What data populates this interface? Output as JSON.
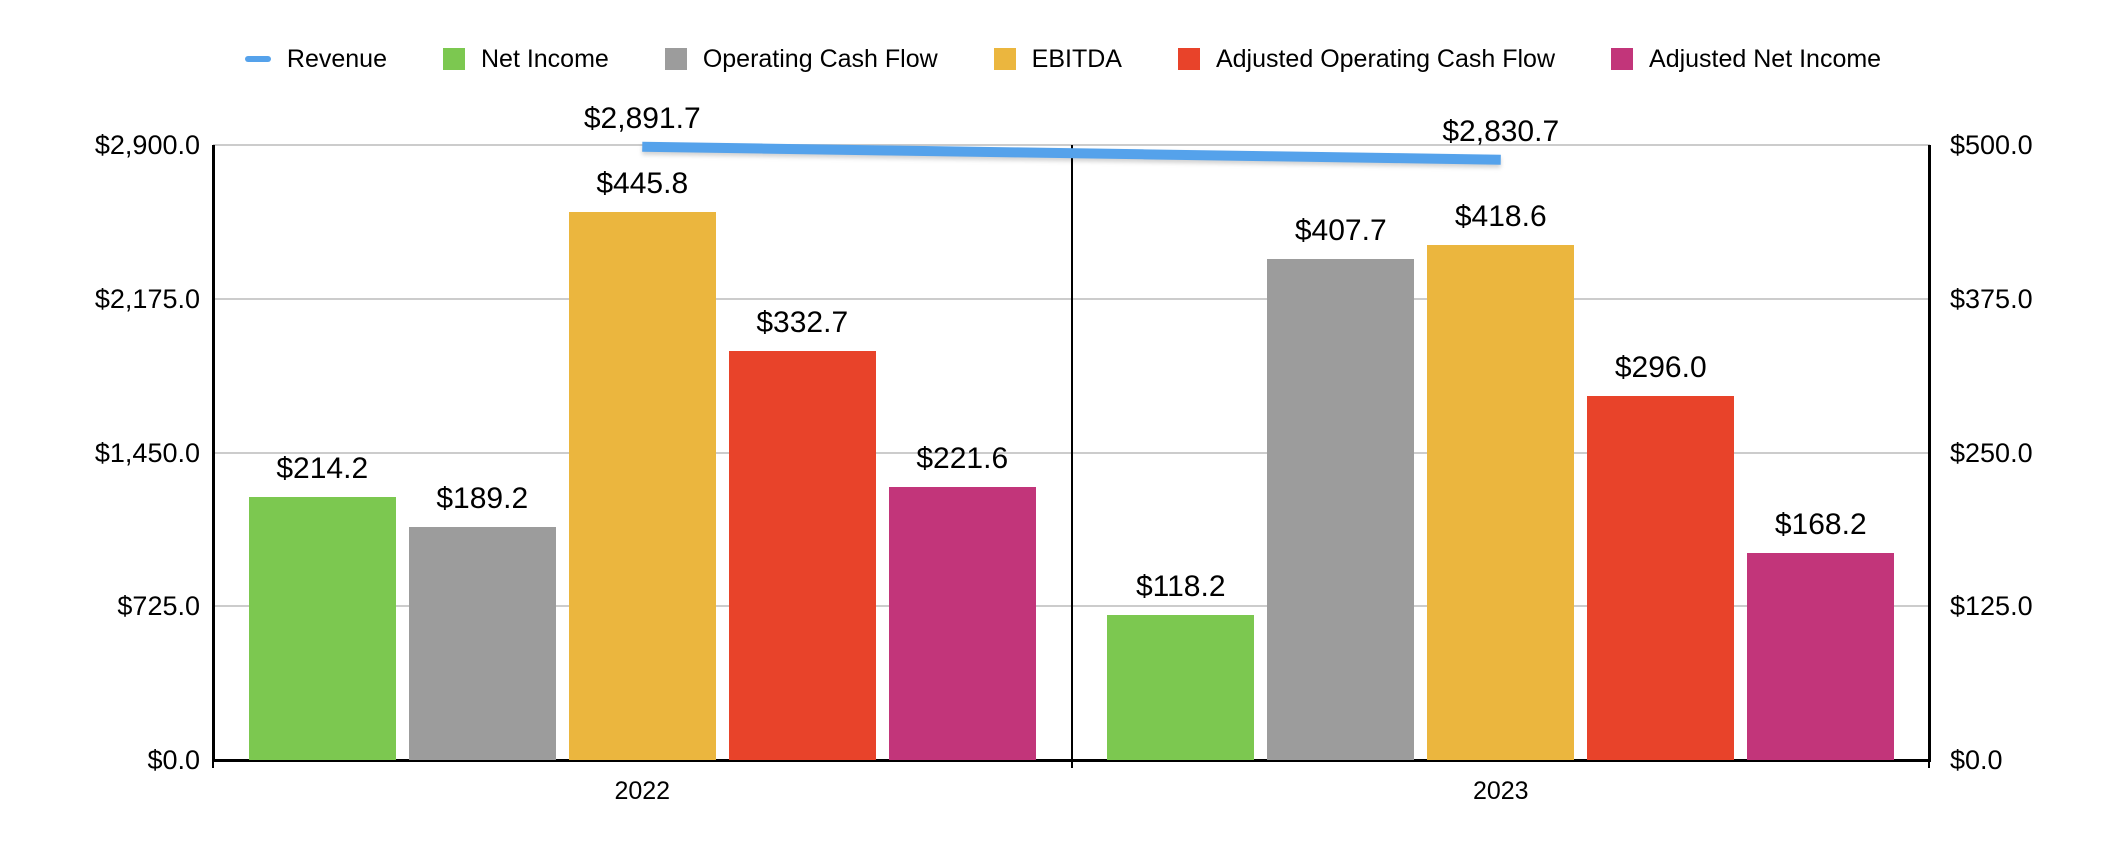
{
  "colors": {
    "revenue_blue": "#55A2EB",
    "net_income_green": "#7CC850",
    "operating_cash_flow_gray": "#9C9C9C",
    "ebitda_gold": "#EBB63E",
    "adjusted_ocf_red": "#E8432A",
    "adjusted_net_income_magenta": "#C2357A",
    "gridline_gray": "#cccccc",
    "axis_black": "#000000"
  },
  "legend": {
    "items": [
      {
        "label": "Revenue",
        "color": "#55A2EB",
        "swatch": "line"
      },
      {
        "label": "Net Income",
        "color": "#7CC850",
        "swatch": "square"
      },
      {
        "label": "Operating Cash Flow",
        "color": "#9C9C9C",
        "swatch": "square"
      },
      {
        "label": "EBITDA",
        "color": "#EBB63E",
        "swatch": "square"
      },
      {
        "label": "Adjusted Operating Cash Flow",
        "color": "#E8432A",
        "swatch": "square"
      },
      {
        "label": "Adjusted Net Income",
        "color": "#C2357A",
        "swatch": "square"
      }
    ]
  },
  "chart_data": {
    "type": "bar",
    "subtype": "grouped bars with overlaid line series on secondary axis",
    "title": "",
    "categories": [
      "2022",
      "2023"
    ],
    "bar_series": [
      {
        "name": "Net Income",
        "color": "#7CC850",
        "values": [
          214.2,
          118.2
        ],
        "labels": [
          "$214.2",
          "$118.2"
        ]
      },
      {
        "name": "Operating Cash Flow",
        "color": "#9C9C9C",
        "values": [
          189.2,
          407.7
        ],
        "labels": [
          "$189.2",
          "$407.7"
        ]
      },
      {
        "name": "EBITDA",
        "color": "#EBB63E",
        "values": [
          445.8,
          418.6
        ],
        "labels": [
          "$445.8",
          "$418.6"
        ]
      },
      {
        "name": "Adjusted Operating Cash Flow",
        "color": "#E8432A",
        "values": [
          332.7,
          296.0
        ],
        "labels": [
          "$332.7",
          "$296.0"
        ]
      },
      {
        "name": "Adjusted Net Income",
        "color": "#C2357A",
        "values": [
          221.6,
          168.2
        ],
        "labels": [
          "$221.6",
          "$168.2"
        ]
      }
    ],
    "line_series": {
      "name": "Revenue",
      "color": "#55A2EB",
      "axis": "left",
      "values": [
        2891.7,
        2830.7
      ],
      "labels": [
        "$2,891.7",
        "$2,830.7"
      ]
    },
    "left_axis": {
      "min": 0,
      "max": 2900,
      "tick_values": [
        2900,
        2175,
        1450,
        725,
        0
      ],
      "tick_labels": [
        "$2,900.0",
        "$2,175.0",
        "$1,450.0",
        "$725.0",
        "$0.0"
      ]
    },
    "right_axis": {
      "min": 0,
      "max": 500,
      "tick_values": [
        500,
        375,
        250,
        125,
        0
      ],
      "tick_labels": [
        "$500.0",
        "$375.0",
        "$250.0",
        "$125.0",
        "$0.0"
      ]
    },
    "grid": "horizontal gridlines at each tick, black baseline, black left/right axis lines, black vertical divider between year groups",
    "legend_position": "top-center"
  }
}
